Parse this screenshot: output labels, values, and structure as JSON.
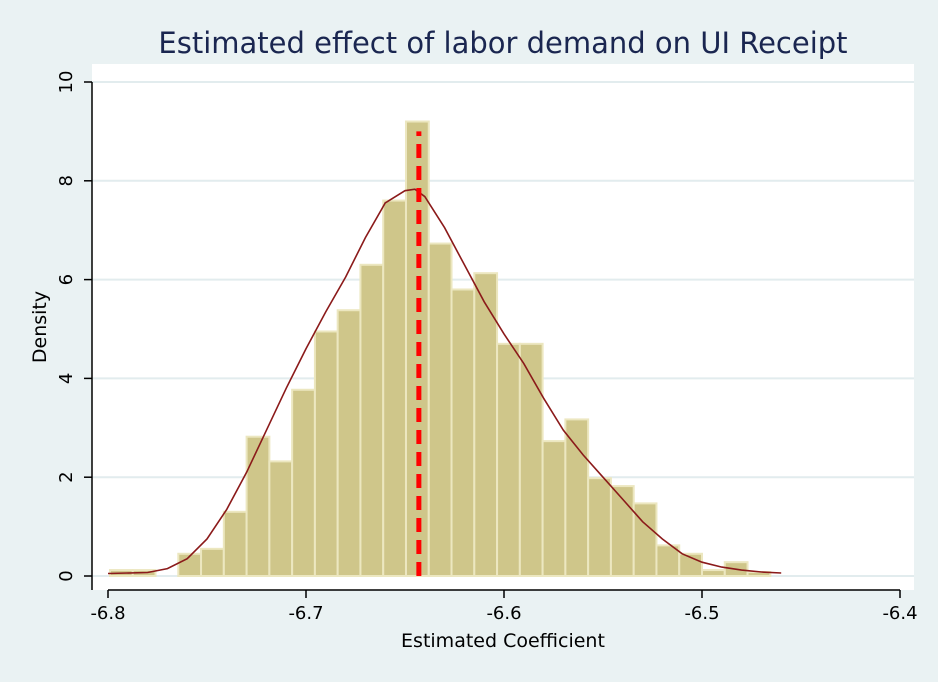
{
  "chart_data": {
    "type": "bar",
    "title": "Estimated effect of labor demand on UI Receipt",
    "xlabel": "Estimated Coefficient",
    "ylabel": "Density",
    "xlim": [
      -6.8,
      -6.4
    ],
    "ylim": [
      0,
      10
    ],
    "xticks": [
      -6.8,
      -6.7,
      -6.6,
      -6.5,
      -6.4
    ],
    "xtick_labels": [
      "-6.8",
      "-6.7",
      "-6.6",
      "-6.5",
      "-6.4"
    ],
    "yticks": [
      0,
      2,
      4,
      6,
      8,
      10
    ],
    "ytick_labels": [
      "0",
      "2",
      "4",
      "6",
      "8",
      "10"
    ],
    "grid": true,
    "bin_width": 0.0115,
    "bins": [
      {
        "x0": -6.799,
        "density": 0.12
      },
      {
        "x0": -6.7875,
        "density": 0.12
      },
      {
        "x0": -6.7645,
        "density": 0.45
      },
      {
        "x0": -6.753,
        "density": 0.55
      },
      {
        "x0": -6.7415,
        "density": 1.3
      },
      {
        "x0": -6.73,
        "density": 2.82
      },
      {
        "x0": -6.7185,
        "density": 2.32
      },
      {
        "x0": -6.707,
        "density": 3.77
      },
      {
        "x0": -6.6955,
        "density": 4.95
      },
      {
        "x0": -6.684,
        "density": 5.38
      },
      {
        "x0": -6.6725,
        "density": 6.3
      },
      {
        "x0": -6.661,
        "density": 7.6
      },
      {
        "x0": -6.6495,
        "density": 9.2
      },
      {
        "x0": -6.638,
        "density": 6.73
      },
      {
        "x0": -6.6265,
        "density": 5.8
      },
      {
        "x0": -6.615,
        "density": 6.13
      },
      {
        "x0": -6.6035,
        "density": 4.7
      },
      {
        "x0": -6.592,
        "density": 4.7
      },
      {
        "x0": -6.5805,
        "density": 2.73
      },
      {
        "x0": -6.569,
        "density": 3.17
      },
      {
        "x0": -6.5575,
        "density": 1.98
      },
      {
        "x0": -6.546,
        "density": 1.82
      },
      {
        "x0": -6.5345,
        "density": 1.47
      },
      {
        "x0": -6.523,
        "density": 0.62
      },
      {
        "x0": -6.5115,
        "density": 0.45
      },
      {
        "x0": -6.5,
        "density": 0.12
      },
      {
        "x0": -6.4885,
        "density": 0.28
      },
      {
        "x0": -6.477,
        "density": 0.08
      }
    ],
    "density_curve": {
      "x": [
        -6.8,
        -6.78,
        -6.77,
        -6.76,
        -6.75,
        -6.74,
        -6.73,
        -6.72,
        -6.71,
        -6.7,
        -6.69,
        -6.68,
        -6.67,
        -6.66,
        -6.65,
        -6.645,
        -6.64,
        -6.63,
        -6.62,
        -6.61,
        -6.6,
        -6.59,
        -6.58,
        -6.57,
        -6.56,
        -6.55,
        -6.54,
        -6.53,
        -6.52,
        -6.51,
        -6.5,
        -6.49,
        -6.48,
        -6.47,
        -6.46
      ],
      "y": [
        0.05,
        0.07,
        0.15,
        0.35,
        0.75,
        1.35,
        2.1,
        2.95,
        3.8,
        4.6,
        5.35,
        6.05,
        6.85,
        7.55,
        7.8,
        7.83,
        7.68,
        7.05,
        6.3,
        5.55,
        4.9,
        4.3,
        3.6,
        2.95,
        2.45,
        2.0,
        1.55,
        1.1,
        0.75,
        0.45,
        0.28,
        0.18,
        0.12,
        0.08,
        0.06
      ]
    },
    "reference_line_x": -6.643,
    "colors": {
      "background": "#eaf2f3",
      "plot_area": "#ffffff",
      "bar_fill": "#cfc68a",
      "bar_edge": "#ece7c0",
      "density_line": "#8b1a1a",
      "reference_line": "#ff0000",
      "grid": "#e2ecee",
      "title": "#1a2650"
    }
  }
}
